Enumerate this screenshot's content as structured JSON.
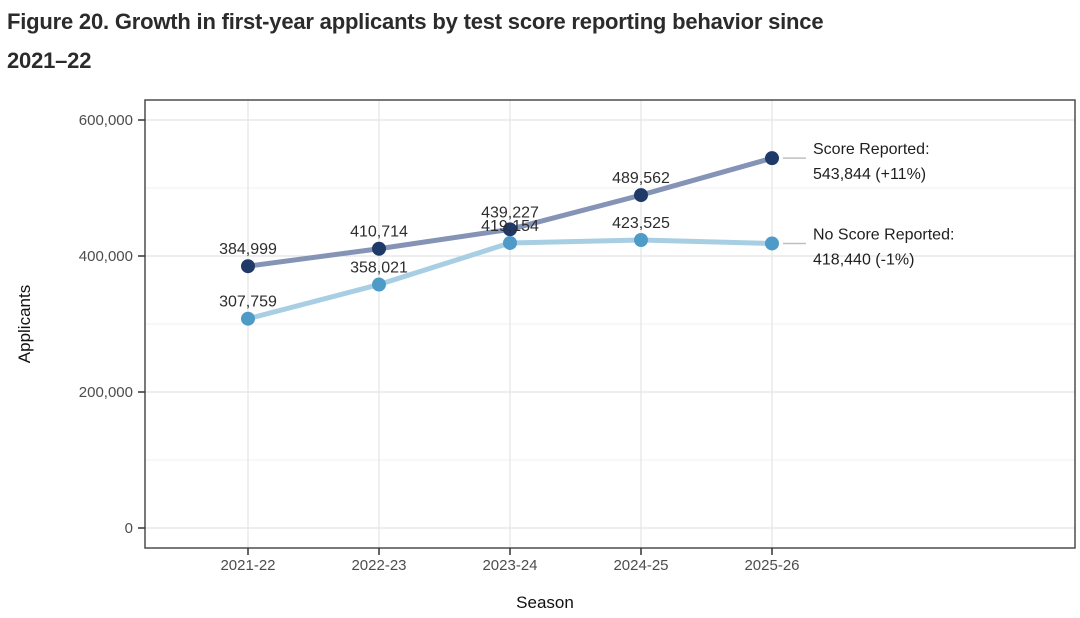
{
  "header": {
    "title_line1": "Figure 20. Growth in first-year applicants by test score reporting behavior since",
    "title_line2": "2021–22"
  },
  "chart_data": {
    "type": "line",
    "title": "Figure 20. Growth in first-year applicants by test score reporting behavior since 2021–22",
    "xlabel": "Season",
    "ylabel": "Applicants",
    "categories": [
      "2021-22",
      "2022-23",
      "2023-24",
      "2024-25",
      "2025-26"
    ],
    "y_ticks": [
      {
        "value": 0,
        "label": "0"
      },
      {
        "value": 200000,
        "label": "200,000"
      },
      {
        "value": 400000,
        "label": "400,000"
      },
      {
        "value": 600000,
        "label": "600,000"
      }
    ],
    "ylim": [
      0,
      600000
    ],
    "grid": true,
    "legend_position": "line-end annotations at right",
    "series": [
      {
        "name": "Score Reported",
        "values": [
          384999,
          410714,
          439227,
          489562,
          543844
        ],
        "point_labels": [
          "384,999",
          "410,714",
          "439,227",
          "489,562"
        ],
        "annotation_lines": [
          "Score Reported:",
          "543,844 (+11%)"
        ],
        "line_color": "#8493b6",
        "point_color": "#1f3a68"
      },
      {
        "name": "No Score Reported",
        "values": [
          307759,
          358021,
          419154,
          423525,
          418440
        ],
        "point_labels": [
          "307,759",
          "358,021",
          "419,154",
          "423,525"
        ],
        "annotation_lines": [
          "No Score Reported:",
          "418,440 (-1%)"
        ],
        "line_color": "#a8cee3",
        "point_color": "#4f9bc8"
      }
    ],
    "palette": {
      "grid_major": "#e4e4e4",
      "grid_minor": "#f2f2f2",
      "panel_border": "#4d4d4d",
      "leader_line": "#bfbfbf",
      "tick_mark": "#333333",
      "tick_text": "#4d4d4d",
      "axis_title_text": "#111111",
      "data_label_text": "#2d2d2d",
      "annotation_text": "#1f1f1f",
      "background": "#ffffff"
    }
  }
}
